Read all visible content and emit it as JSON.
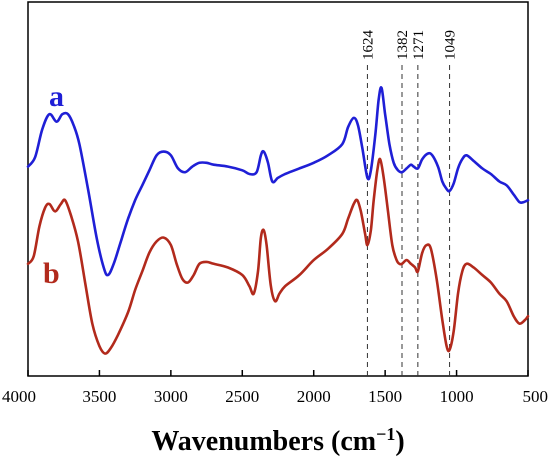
{
  "chart_data": {
    "type": "line",
    "title": "",
    "xlabel_main": "Wavenumbers (cm",
    "xlabel_sup": "−1",
    "xlabel_close": ")",
    "ylabel": "",
    "xlim": [
      4000,
      500
    ],
    "x_reversed": true,
    "xticks": [
      4000,
      3500,
      3000,
      2500,
      2000,
      1500,
      1000,
      500
    ],
    "grid": false,
    "reference_lines": [
      {
        "x": 1624,
        "label": "1624"
      },
      {
        "x": 1382,
        "label": "1382"
      },
      {
        "x": 1271,
        "label": "1271"
      },
      {
        "x": 1049,
        "label": "1049"
      }
    ],
    "series": [
      {
        "name": "a",
        "color": "#1f1fd6",
        "points": [
          [
            4000,
            0.56
          ],
          [
            3950,
            0.585
          ],
          [
            3900,
            0.66
          ],
          [
            3850,
            0.7
          ],
          [
            3800,
            0.68
          ],
          [
            3760,
            0.7
          ],
          [
            3720,
            0.7
          ],
          [
            3680,
            0.67
          ],
          [
            3640,
            0.62
          ],
          [
            3580,
            0.5
          ],
          [
            3520,
            0.37
          ],
          [
            3470,
            0.29
          ],
          [
            3440,
            0.27
          ],
          [
            3400,
            0.3
          ],
          [
            3350,
            0.36
          ],
          [
            3300,
            0.42
          ],
          [
            3250,
            0.47
          ],
          [
            3200,
            0.51
          ],
          [
            3150,
            0.55
          ],
          [
            3100,
            0.59
          ],
          [
            3050,
            0.6
          ],
          [
            3000,
            0.59
          ],
          [
            2950,
            0.555
          ],
          [
            2900,
            0.545
          ],
          [
            2850,
            0.56
          ],
          [
            2800,
            0.57
          ],
          [
            2750,
            0.57
          ],
          [
            2700,
            0.565
          ],
          [
            2600,
            0.56
          ],
          [
            2500,
            0.55
          ],
          [
            2450,
            0.54
          ],
          [
            2400,
            0.545
          ],
          [
            2370,
            0.59
          ],
          [
            2350,
            0.6
          ],
          [
            2320,
            0.57
          ],
          [
            2290,
            0.52
          ],
          [
            2250,
            0.53
          ],
          [
            2200,
            0.54
          ],
          [
            2100,
            0.555
          ],
          [
            2000,
            0.57
          ],
          [
            1900,
            0.59
          ],
          [
            1800,
            0.62
          ],
          [
            1760,
            0.665
          ],
          [
            1720,
            0.69
          ],
          [
            1690,
            0.67
          ],
          [
            1660,
            0.61
          ],
          [
            1624,
            0.53
          ],
          [
            1600,
            0.55
          ],
          [
            1570,
            0.64
          ],
          [
            1545,
            0.74
          ],
          [
            1525,
            0.77
          ],
          [
            1500,
            0.7
          ],
          [
            1470,
            0.62
          ],
          [
            1440,
            0.57
          ],
          [
            1410,
            0.55
          ],
          [
            1382,
            0.545
          ],
          [
            1350,
            0.555
          ],
          [
            1320,
            0.565
          ],
          [
            1300,
            0.56
          ],
          [
            1271,
            0.555
          ],
          [
            1240,
            0.58
          ],
          [
            1200,
            0.595
          ],
          [
            1170,
            0.59
          ],
          [
            1130,
            0.56
          ],
          [
            1100,
            0.52
          ],
          [
            1070,
            0.5
          ],
          [
            1049,
            0.495
          ],
          [
            1020,
            0.515
          ],
          [
            990,
            0.555
          ],
          [
            960,
            0.58
          ],
          [
            930,
            0.59
          ],
          [
            880,
            0.575
          ],
          [
            820,
            0.555
          ],
          [
            760,
            0.54
          ],
          [
            700,
            0.52
          ],
          [
            650,
            0.51
          ],
          [
            600,
            0.485
          ],
          [
            560,
            0.465
          ],
          [
            530,
            0.465
          ],
          [
            500,
            0.47
          ]
        ]
      },
      {
        "name": "b",
        "color": "#b22a1c",
        "points": [
          [
            4000,
            0.3
          ],
          [
            3960,
            0.32
          ],
          [
            3920,
            0.4
          ],
          [
            3880,
            0.45
          ],
          [
            3850,
            0.46
          ],
          [
            3810,
            0.44
          ],
          [
            3770,
            0.46
          ],
          [
            3740,
            0.47
          ],
          [
            3700,
            0.43
          ],
          [
            3650,
            0.36
          ],
          [
            3600,
            0.25
          ],
          [
            3550,
            0.14
          ],
          [
            3500,
            0.08
          ],
          [
            3460,
            0.06
          ],
          [
            3420,
            0.075
          ],
          [
            3370,
            0.11
          ],
          [
            3300,
            0.17
          ],
          [
            3250,
            0.23
          ],
          [
            3200,
            0.28
          ],
          [
            3150,
            0.33
          ],
          [
            3100,
            0.36
          ],
          [
            3050,
            0.37
          ],
          [
            3000,
            0.35
          ],
          [
            2960,
            0.3
          ],
          [
            2920,
            0.26
          ],
          [
            2880,
            0.25
          ],
          [
            2840,
            0.27
          ],
          [
            2800,
            0.3
          ],
          [
            2750,
            0.305
          ],
          [
            2700,
            0.3
          ],
          [
            2600,
            0.29
          ],
          [
            2500,
            0.27
          ],
          [
            2450,
            0.24
          ],
          [
            2420,
            0.22
          ],
          [
            2390,
            0.28
          ],
          [
            2370,
            0.37
          ],
          [
            2350,
            0.39
          ],
          [
            2330,
            0.35
          ],
          [
            2300,
            0.24
          ],
          [
            2270,
            0.2
          ],
          [
            2240,
            0.22
          ],
          [
            2200,
            0.24
          ],
          [
            2100,
            0.27
          ],
          [
            2000,
            0.31
          ],
          [
            1900,
            0.34
          ],
          [
            1800,
            0.38
          ],
          [
            1760,
            0.42
          ],
          [
            1720,
            0.46
          ],
          [
            1695,
            0.47
          ],
          [
            1670,
            0.44
          ],
          [
            1640,
            0.38
          ],
          [
            1624,
            0.35
          ],
          [
            1600,
            0.39
          ],
          [
            1580,
            0.47
          ],
          [
            1555,
            0.55
          ],
          [
            1535,
            0.58
          ],
          [
            1510,
            0.53
          ],
          [
            1480,
            0.44
          ],
          [
            1450,
            0.35
          ],
          [
            1420,
            0.31
          ],
          [
            1400,
            0.3
          ],
          [
            1382,
            0.3
          ],
          [
            1350,
            0.31
          ],
          [
            1320,
            0.3
          ],
          [
            1290,
            0.29
          ],
          [
            1271,
            0.28
          ],
          [
            1240,
            0.33
          ],
          [
            1210,
            0.35
          ],
          [
            1180,
            0.34
          ],
          [
            1140,
            0.26
          ],
          [
            1100,
            0.15
          ],
          [
            1070,
            0.08
          ],
          [
            1049,
            0.07
          ],
          [
            1020,
            0.12
          ],
          [
            990,
            0.22
          ],
          [
            960,
            0.28
          ],
          [
            930,
            0.3
          ],
          [
            880,
            0.29
          ],
          [
            820,
            0.27
          ],
          [
            760,
            0.25
          ],
          [
            700,
            0.22
          ],
          [
            650,
            0.2
          ],
          [
            600,
            0.16
          ],
          [
            560,
            0.14
          ],
          [
            520,
            0.15
          ],
          [
            500,
            0.16
          ]
        ]
      }
    ]
  }
}
